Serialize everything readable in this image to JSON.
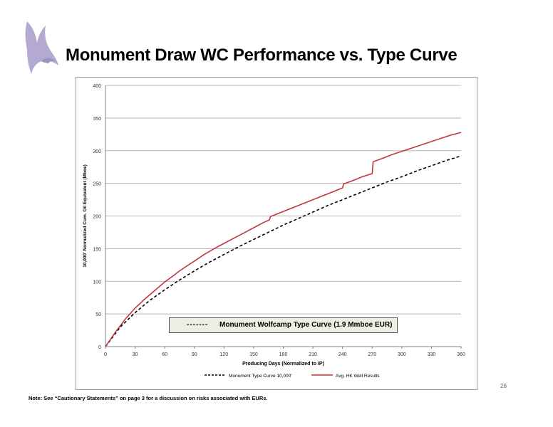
{
  "slide": {
    "title": "Monument Draw WC Performance vs. Type Curve",
    "note": "Note: See “Cautionary Statements” on page 3 for a discussion on risks associated with EURs.",
    "page_number": "28"
  },
  "colors": {
    "logo": "#b3a9d1",
    "actual_series": "#c0373f",
    "type_series": "#000000",
    "grid": "#b5b5b5",
    "legend_box_bg": "#eeeee2"
  },
  "chart_data": {
    "type": "line",
    "title": "",
    "xlabel": "Producing Days (Normalized to IP)",
    "ylabel": "10,000' Normalized Cum. Oil Equivalent (Mboe)",
    "xlim": [
      0,
      360
    ],
    "ylim": [
      0,
      400
    ],
    "x_ticks": [
      "0",
      "30",
      "60",
      "90",
      "120",
      "150",
      "180",
      "210",
      "240",
      "270",
      "300",
      "330",
      "360"
    ],
    "y_ticks": [
      "0",
      "50",
      "100",
      "150",
      "200",
      "250",
      "300",
      "350",
      "400"
    ],
    "grid": "horizontal",
    "legend_position": "bottom",
    "annotation": {
      "dash": "-------",
      "text": "Monument Wolfcamp Type Curve (1.9 Mmboe EUR)"
    },
    "series": [
      {
        "name": "Monument Type Curve 10,000'",
        "style": "dashed",
        "x": [
          0,
          15,
          30,
          45,
          60,
          75,
          90,
          105,
          120,
          135,
          150,
          165,
          180,
          195,
          210,
          225,
          240,
          255,
          270,
          285,
          300,
          315,
          330,
          345,
          360
        ],
        "y": [
          0,
          30,
          52,
          71,
          87,
          102,
          116,
          129,
          141,
          153,
          164,
          175,
          186,
          196,
          206,
          216,
          225,
          234,
          243,
          252,
          260,
          269,
          277,
          285,
          292
        ]
      },
      {
        "name": "Avg. HK Well Results",
        "style": "solid",
        "x": [
          0,
          10,
          20,
          30,
          40,
          50,
          60,
          70,
          75,
          80,
          90,
          100,
          110,
          120,
          130,
          140,
          150,
          160,
          166,
          167,
          180,
          190,
          200,
          210,
          220,
          230,
          240,
          241,
          250,
          260,
          270,
          271,
          280,
          290,
          300,
          310,
          320,
          330,
          340,
          350,
          360
        ],
        "y": [
          0,
          22,
          42,
          59,
          73,
          86,
          99,
          110,
          116,
          121,
          131,
          141,
          150,
          158,
          166,
          174,
          182,
          190,
          194,
          199,
          207,
          213,
          219,
          225,
          231,
          237,
          243,
          249,
          254,
          260,
          265,
          283,
          288,
          294,
          299,
          304,
          309,
          314,
          319,
          324,
          328
        ]
      }
    ]
  }
}
